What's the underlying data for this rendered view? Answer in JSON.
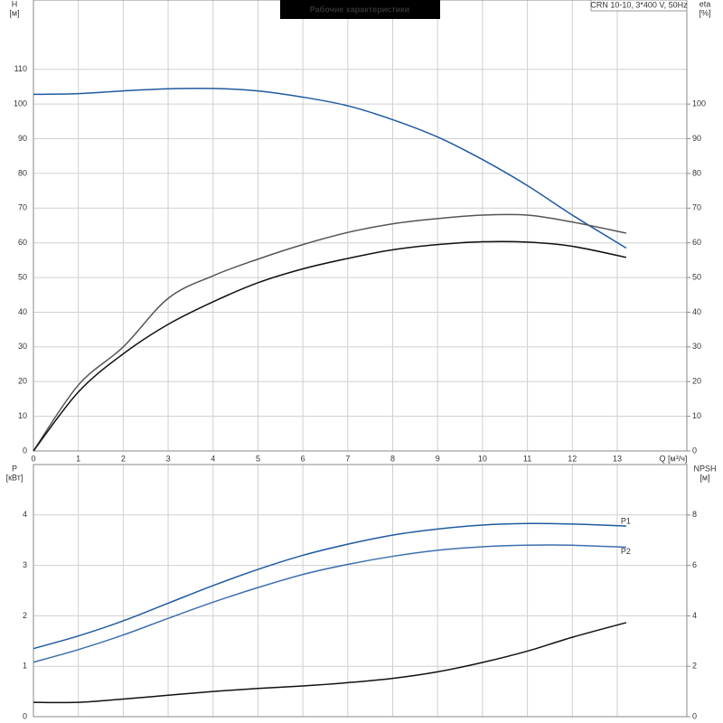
{
  "chart_data": [
    {
      "type": "line",
      "title": "Рабочие характеристики",
      "subtitle": "CRN 10-10, 3*400 V, 50Hz",
      "ylabel": [
        "H",
        "[м]"
      ],
      "y2label": [
        "eta",
        "[%]"
      ],
      "xlabel": "Q [м³/ч]",
      "x": [
        0,
        1,
        2,
        3,
        4,
        5,
        6,
        7,
        8,
        9,
        10,
        11,
        12,
        13.2
      ],
      "xlim": [
        0,
        14.55
      ],
      "xticks": [
        0,
        1,
        2,
        3,
        4,
        5,
        6,
        7,
        8,
        9,
        10,
        11,
        12,
        13
      ],
      "ylim": [
        0,
        130
      ],
      "yticks": [
        0,
        10,
        20,
        30,
        40,
        50,
        60,
        70,
        80,
        90,
        100,
        110
      ],
      "y2lim": [
        0,
        130
      ],
      "y2ticks": [
        0,
        10,
        20,
        30,
        40,
        50,
        60,
        70,
        80,
        90,
        100
      ],
      "grid": true,
      "series": [
        {
          "color": "#1f5aa0",
          "values": [
            102.8,
            103,
            103.8,
            104.4,
            104.5,
            103.8,
            102,
            99.5,
            95.5,
            90.5,
            84,
            76.5,
            68,
            58.5
          ]
        },
        {
          "color": "#555555",
          "axis": "y2",
          "values": [
            0,
            19,
            30,
            44,
            50.5,
            55.3,
            59.5,
            63,
            65.5,
            67,
            68,
            68,
            66,
            62.8
          ]
        },
        {
          "color": "#111111",
          "axis": "y2",
          "values": [
            0,
            17,
            28,
            36.5,
            43,
            48.5,
            52.5,
            55.5,
            58,
            59.5,
            60.3,
            60.2,
            59,
            55.8
          ]
        }
      ]
    },
    {
      "type": "line",
      "ylabel": [
        "P",
        "[кВт]"
      ],
      "y2label": [
        "NPSH",
        "[м]"
      ],
      "x": [
        0,
        1,
        2,
        3,
        4,
        5,
        6,
        7,
        8,
        9,
        10,
        11,
        12,
        13.2
      ],
      "xlim": [
        0,
        14.55
      ],
      "ylim": [
        0,
        5
      ],
      "yticks": [
        0,
        1,
        2,
        3,
        4
      ],
      "y2lim": [
        0,
        10
      ],
      "y2ticks": [
        0,
        2,
        4,
        6,
        8
      ],
      "grid": true,
      "series": [
        {
          "name": "P1",
          "color": "#1f5aa0",
          "values": [
            1.35,
            1.6,
            1.9,
            2.25,
            2.6,
            2.92,
            3.2,
            3.42,
            3.6,
            3.72,
            3.8,
            3.83,
            3.82,
            3.78
          ]
        },
        {
          "name": "P2",
          "color": "#3d6fae",
          "values": [
            1.08,
            1.33,
            1.62,
            1.95,
            2.27,
            2.56,
            2.82,
            3.02,
            3.18,
            3.3,
            3.37,
            3.4,
            3.4,
            3.36
          ]
        },
        {
          "color": "#111111",
          "axis": "y2",
          "values": [
            0.57,
            0.57,
            0.7,
            0.85,
            1.0,
            1.12,
            1.22,
            1.35,
            1.52,
            1.78,
            2.15,
            2.6,
            3.15,
            3.73
          ]
        }
      ]
    }
  ]
}
